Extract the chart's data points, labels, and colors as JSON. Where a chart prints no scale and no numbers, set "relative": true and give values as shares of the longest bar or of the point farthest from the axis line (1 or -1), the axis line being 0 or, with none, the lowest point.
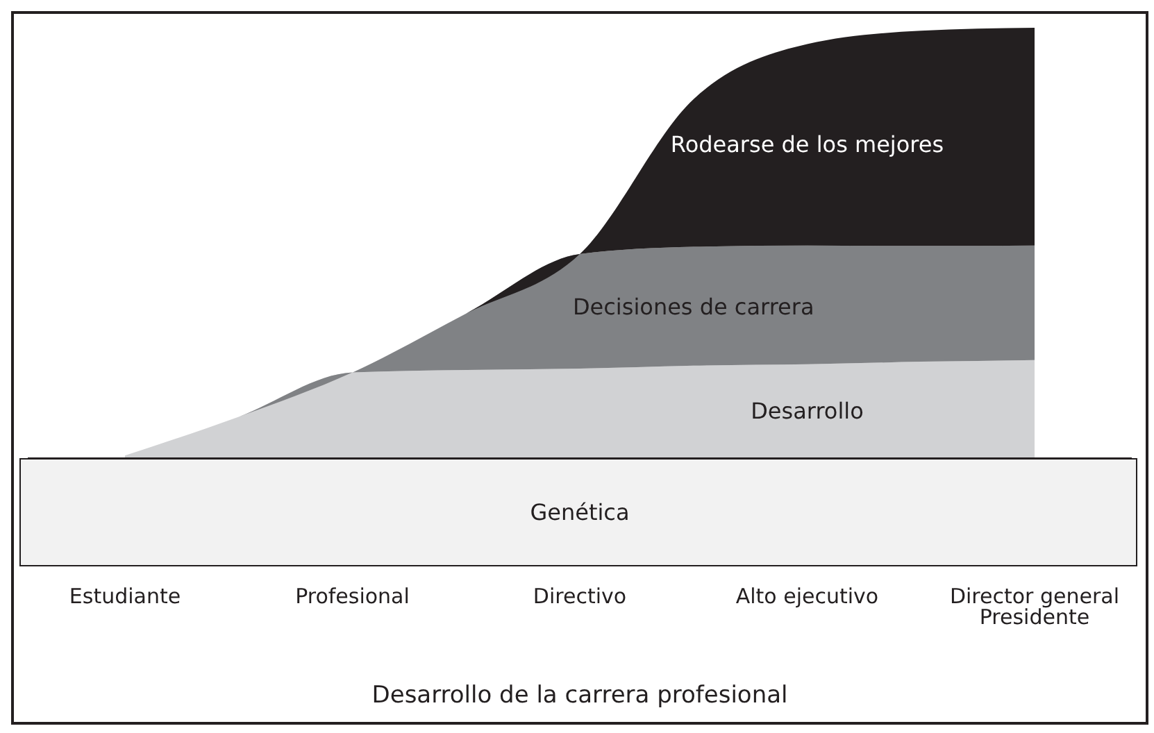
{
  "chart_data": {
    "type": "area",
    "relative": true,
    "stacked": true,
    "xlabel": "Desarrollo de la carrera profesional",
    "annotations": [
      "Genética"
    ],
    "categories": [
      "Estudiante",
      null,
      "Profesional",
      null,
      "Directivo",
      null,
      "Alto ejecutivo",
      null,
      "Director general Presidente"
    ],
    "series": [
      {
        "name": "Desarrollo",
        "color": "#d1d2d4",
        "values": [
          0.006,
          0.096,
          0.199,
          0.205,
          0.208,
          0.215,
          0.218,
          0.224,
          0.228
        ]
      },
      {
        "name": "Decisiones de carrera",
        "color": "#808285",
        "values": [
          0,
          0,
          0,
          0.131,
          0.266,
          0.276,
          0.276,
          0.269,
          0.266
        ]
      },
      {
        "name": "Rodearse de los mejores",
        "color": "#231f20",
        "values": [
          0,
          0,
          0,
          0,
          0,
          0.343,
          0.468,
          0.5,
          0.506
        ]
      }
    ]
  }
}
